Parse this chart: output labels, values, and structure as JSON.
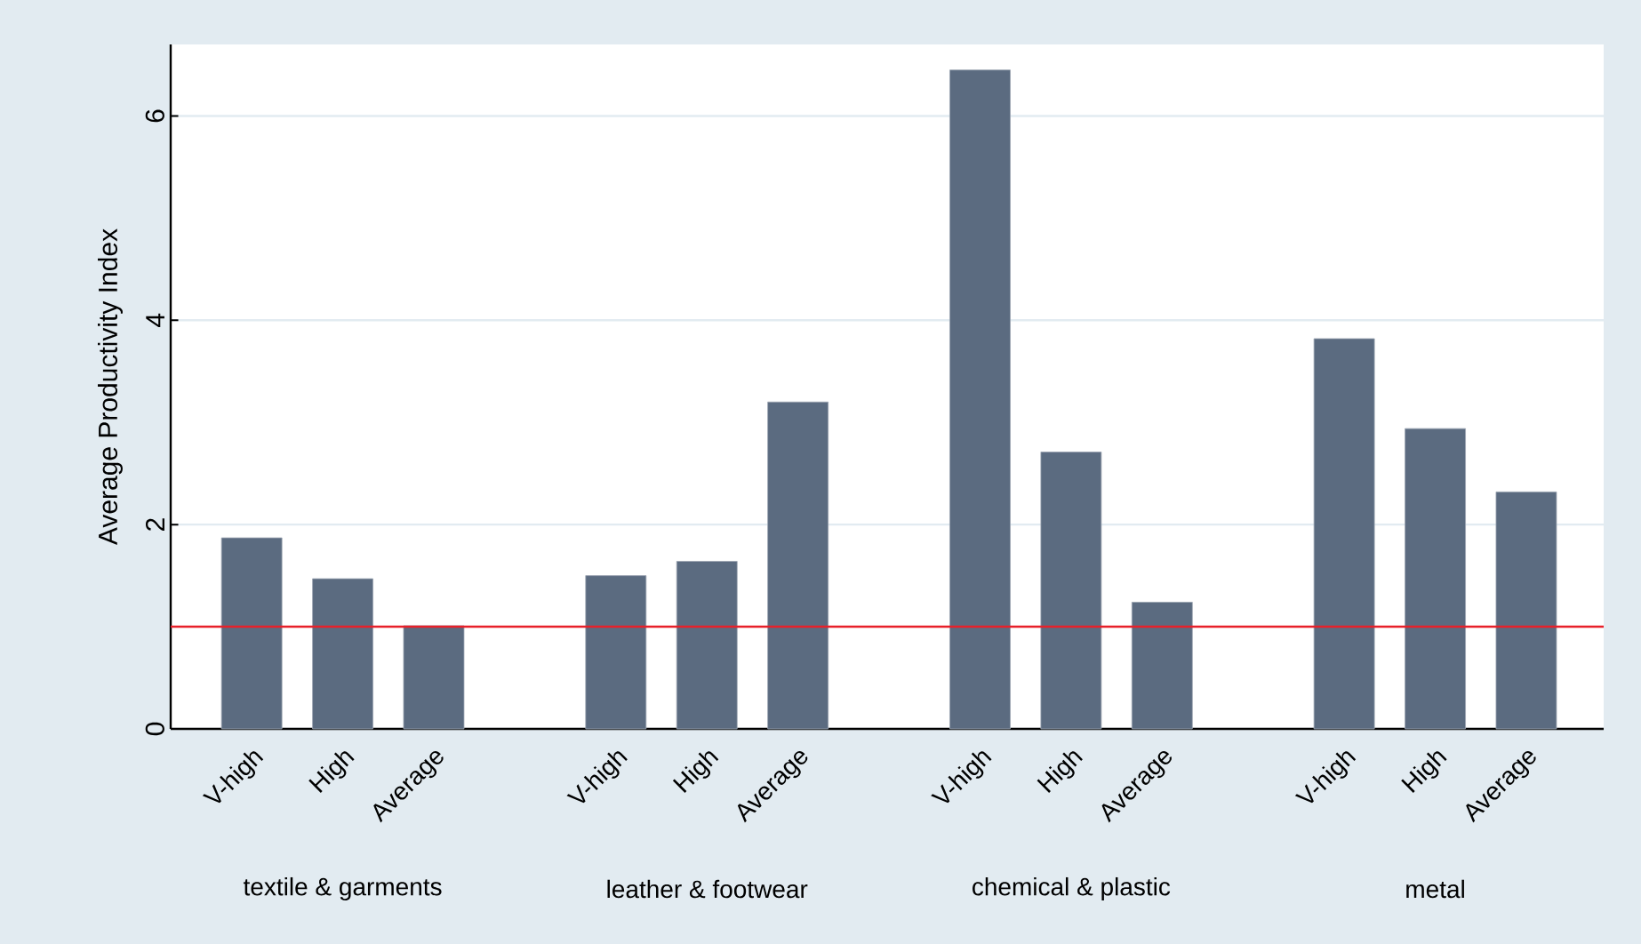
{
  "chart_data": {
    "type": "bar",
    "ylabel": "Average Productivity Index",
    "categories": [
      "V-high",
      "High",
      "Average",
      null,
      "V-high",
      "High",
      "Average",
      null,
      "V-high",
      "High",
      "Average",
      null,
      "V-high",
      "High",
      "Average"
    ],
    "values": [
      1.87,
      1.47,
      1.01,
      null,
      1.5,
      1.64,
      3.2,
      null,
      6.45,
      2.71,
      1.24,
      null,
      3.82,
      2.94,
      2.32
    ],
    "color": "#5b6b80",
    "ylim": [
      0,
      6.7
    ],
    "yticks": [
      0,
      2,
      4,
      6
    ],
    "grid": "y",
    "ref_lines": [
      {
        "axis": "y",
        "value": 1,
        "color": "#e8202a"
      }
    ],
    "annotations": [
      "textile & garments",
      "leather & footwear",
      "chemical & plastic",
      "metal"
    ]
  }
}
